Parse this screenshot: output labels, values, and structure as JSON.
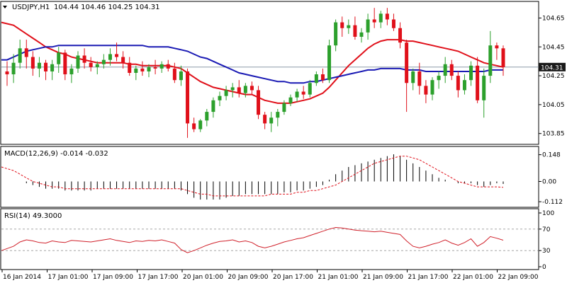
{
  "header": {
    "symbol": "USDJPY,H1",
    "ohlc": "104.44 104.46 104.25 104.31"
  },
  "colors": {
    "bull": "#2ca02c",
    "bear": "#e0101a",
    "ma_fast": "#e0101a",
    "ma_slow": "#1a1ab4",
    "macd_signal": "#e0101a",
    "rsi": "#d0202a",
    "grid": "#c8c8c8",
    "price_tag_bg": "#1a1a1a"
  },
  "chart_data": [
    {
      "type": "candlestick",
      "title": "USDJPY,H1",
      "ylim": [
        103.78,
        104.76
      ],
      "y_ticks": [
        "104.65",
        "104.45",
        "104.25",
        "104.05",
        "103.85"
      ],
      "current_price": "104.31",
      "x_labels": [
        "16 Jan 2014",
        "17 Jan 01:00",
        "17 Jan 09:00",
        "17 Jan 17:00",
        "20 Jan 01:00",
        "20 Jan 09:00",
        "20 Jan 17:00",
        "21 Jan 01:00",
        "21 Jan 09:00",
        "21 Jan 17:00",
        "22 Jan 01:00",
        "22 Jan 09:00"
      ],
      "candles": [
        [
          104.28,
          104.35,
          104.18,
          104.26
        ],
        [
          104.26,
          104.4,
          104.2,
          104.34
        ],
        [
          104.34,
          104.5,
          104.3,
          104.44
        ],
        [
          104.44,
          104.5,
          104.3,
          104.38
        ],
        [
          104.38,
          104.42,
          104.25,
          104.3
        ],
        [
          104.3,
          104.38,
          104.24,
          104.34
        ],
        [
          104.34,
          104.36,
          104.22,
          104.28
        ],
        [
          104.28,
          104.36,
          104.22,
          104.33
        ],
        [
          104.33,
          104.45,
          104.27,
          104.41
        ],
        [
          104.41,
          104.43,
          104.22,
          104.26
        ],
        [
          104.26,
          104.33,
          104.2,
          104.3
        ],
        [
          104.3,
          104.42,
          104.27,
          104.39
        ],
        [
          104.39,
          104.44,
          104.3,
          104.34
        ],
        [
          104.34,
          104.38,
          104.28,
          104.31
        ],
        [
          104.31,
          104.35,
          104.26,
          104.33
        ],
        [
          104.33,
          104.4,
          104.3,
          104.36
        ],
        [
          104.36,
          104.44,
          104.32,
          104.4
        ],
        [
          104.4,
          104.48,
          104.35,
          104.38
        ],
        [
          104.38,
          104.42,
          104.3,
          104.34
        ],
        [
          104.34,
          104.38,
          104.25,
          104.27
        ],
        [
          104.27,
          104.32,
          104.22,
          104.3
        ],
        [
          104.3,
          104.35,
          104.25,
          104.28
        ],
        [
          104.28,
          104.33,
          104.24,
          104.31
        ],
        [
          104.31,
          104.36,
          104.26,
          104.3
        ],
        [
          104.3,
          104.35,
          104.27,
          104.33
        ],
        [
          104.33,
          104.36,
          104.28,
          104.3
        ],
        [
          104.3,
          104.34,
          104.2,
          104.22
        ],
        [
          104.22,
          104.32,
          104.18,
          104.28
        ],
        [
          104.28,
          104.3,
          103.82,
          103.92
        ],
        [
          103.92,
          103.96,
          103.86,
          103.88
        ],
        [
          103.88,
          103.95,
          103.86,
          103.94
        ],
        [
          103.94,
          104.02,
          103.9,
          104.0
        ],
        [
          104.0,
          104.1,
          103.96,
          104.08
        ],
        [
          104.08,
          104.14,
          104.04,
          104.11
        ],
        [
          104.11,
          104.18,
          104.08,
          104.15
        ],
        [
          104.15,
          104.2,
          104.1,
          104.17
        ],
        [
          104.17,
          104.22,
          104.1,
          104.13
        ],
        [
          104.13,
          104.2,
          104.1,
          104.18
        ],
        [
          104.18,
          104.21,
          104.12,
          104.15
        ],
        [
          104.15,
          104.18,
          103.95,
          103.98
        ],
        [
          103.98,
          104.0,
          103.88,
          103.92
        ],
        [
          103.92,
          104.0,
          103.86,
          103.96
        ],
        [
          103.96,
          104.02,
          103.9,
          104.0
        ],
        [
          104.0,
          104.08,
          103.98,
          104.06
        ],
        [
          104.06,
          104.12,
          104.04,
          104.1
        ],
        [
          104.1,
          104.16,
          104.07,
          104.14
        ],
        [
          104.14,
          104.18,
          104.09,
          104.12
        ],
        [
          104.12,
          104.22,
          104.1,
          104.2
        ],
        [
          104.2,
          104.28,
          104.18,
          104.26
        ],
        [
          104.26,
          104.3,
          104.2,
          104.22
        ],
        [
          104.22,
          104.5,
          104.2,
          104.46
        ],
        [
          104.46,
          104.64,
          104.42,
          104.62
        ],
        [
          104.62,
          104.66,
          104.52,
          104.58
        ],
        [
          104.58,
          104.64,
          104.54,
          104.6
        ],
        [
          104.6,
          104.66,
          104.5,
          104.52
        ],
        [
          104.52,
          104.58,
          104.48,
          104.55
        ],
        [
          104.55,
          104.68,
          104.5,
          104.64
        ],
        [
          104.64,
          104.72,
          104.58,
          104.62
        ],
        [
          104.62,
          104.7,
          104.58,
          104.68
        ],
        [
          104.68,
          104.72,
          104.6,
          104.64
        ],
        [
          104.64,
          104.68,
          104.56,
          104.58
        ],
        [
          104.58,
          104.62,
          104.44,
          104.48
        ],
        [
          104.48,
          104.5,
          104.0,
          104.2
        ],
        [
          104.2,
          104.3,
          104.15,
          104.28
        ],
        [
          104.28,
          104.34,
          104.12,
          104.18
        ],
        [
          104.18,
          104.22,
          104.06,
          104.12
        ],
        [
          104.12,
          104.24,
          104.08,
          104.22
        ],
        [
          104.22,
          104.28,
          104.16,
          104.25
        ],
        [
          104.25,
          104.38,
          104.2,
          104.33
        ],
        [
          104.33,
          104.36,
          104.22,
          104.25
        ],
        [
          104.25,
          104.28,
          104.1,
          104.15
        ],
        [
          104.15,
          104.26,
          104.12,
          104.22
        ],
        [
          104.22,
          104.35,
          104.18,
          104.32
        ],
        [
          104.32,
          104.38,
          104.06,
          104.08
        ],
        [
          104.08,
          104.3,
          103.96,
          104.25
        ],
        [
          104.25,
          104.56,
          104.2,
          104.46
        ],
        [
          104.46,
          104.48,
          104.36,
          104.44
        ],
        [
          104.44,
          104.46,
          104.25,
          104.31
        ]
      ],
      "series": [
        {
          "values": [
            104.62,
            104.6,
            104.57,
            104.54,
            104.51,
            104.48,
            104.45,
            104.43,
            104.41,
            104.4,
            104.38,
            104.37,
            104.36,
            104.35,
            104.34,
            104.34,
            104.34,
            104.34,
            104.34,
            104.33,
            104.33,
            104.32,
            104.32,
            104.32,
            104.32,
            104.32,
            104.31,
            104.3,
            104.27,
            104.24,
            104.21,
            104.19,
            104.17,
            104.16,
            104.15,
            104.14,
            104.13,
            104.12,
            104.12,
            104.1,
            104.08,
            104.07,
            104.06,
            104.06,
            104.06,
            104.07,
            104.08,
            104.09,
            104.11,
            104.13,
            104.17,
            104.22,
            104.27,
            104.32,
            104.36,
            104.4,
            104.44,
            104.47,
            104.49,
            104.5,
            104.5,
            104.5,
            104.49,
            104.49,
            104.48,
            104.47,
            104.46,
            104.45,
            104.44,
            104.43,
            104.42,
            104.4,
            104.38,
            104.36,
            104.34,
            104.33,
            104.32,
            104.31
          ]
        },
        {
          "values": [
            104.36,
            104.38,
            104.4,
            104.42,
            104.43,
            104.44,
            104.45,
            104.45,
            104.46,
            104.46,
            104.46,
            104.46,
            104.46,
            104.46,
            104.46,
            104.46,
            104.46,
            104.46,
            104.46,
            104.46,
            104.46,
            104.46,
            104.45,
            104.45,
            104.45,
            104.45,
            104.44,
            104.43,
            104.42,
            104.4,
            104.38,
            104.37,
            104.35,
            104.33,
            104.31,
            104.29,
            104.27,
            104.26,
            104.25,
            104.24,
            104.23,
            104.22,
            104.21,
            104.21,
            104.2,
            104.2,
            104.2,
            104.21,
            104.21,
            104.22,
            104.23,
            104.24,
            104.25,
            104.26,
            104.27,
            104.28,
            104.29,
            104.29,
            104.3,
            104.3,
            104.3,
            104.3,
            104.29,
            104.29,
            104.29,
            104.28,
            104.28,
            104.28,
            104.28,
            104.28,
            104.28,
            104.28,
            104.28,
            104.28,
            104.28,
            104.29,
            104.29,
            104.29
          ]
        }
      ]
    },
    {
      "type": "histogram+line",
      "title": "MACD(12,26,9) -0.014 -0.032",
      "ylim": [
        -0.135,
        0.17
      ],
      "y_ticks": [
        "0.148",
        "0.00",
        "-0.112"
      ],
      "series": [
        {
          "values": [
            0,
            0,
            0,
            -0.01,
            -0.02,
            -0.03,
            -0.04,
            -0.04,
            -0.04,
            -0.05,
            -0.05,
            -0.05,
            -0.05,
            -0.05,
            -0.04,
            -0.04,
            -0.04,
            -0.04,
            -0.04,
            -0.04,
            -0.04,
            -0.04,
            -0.04,
            -0.04,
            -0.04,
            -0.04,
            -0.04,
            -0.05,
            -0.07,
            -0.09,
            -0.1,
            -0.1,
            -0.1,
            -0.1,
            -0.09,
            -0.08,
            -0.08,
            -0.07,
            -0.07,
            -0.07,
            -0.07,
            -0.07,
            -0.07,
            -0.06,
            -0.06,
            -0.05,
            -0.05,
            -0.04,
            -0.03,
            -0.02,
            0.01,
            0.04,
            0.06,
            0.08,
            0.09,
            0.1,
            0.11,
            0.12,
            0.13,
            0.14,
            0.15,
            0.14,
            0.12,
            0.1,
            0.08,
            0.06,
            0.04,
            0.02,
            0.01,
            0.0,
            -0.01,
            -0.01,
            -0.01,
            -0.02,
            -0.03,
            -0.02,
            -0.01,
            -0.014
          ]
        },
        {
          "values": [
            0.08,
            0.06,
            0.04,
            0.02,
            0.0,
            -0.01,
            -0.02,
            -0.03,
            -0.03,
            -0.04,
            -0.04,
            -0.04,
            -0.04,
            -0.04,
            -0.04,
            -0.04,
            -0.04,
            -0.04,
            -0.04,
            -0.04,
            -0.04,
            -0.04,
            -0.04,
            -0.04,
            -0.04,
            -0.04,
            -0.04,
            -0.04,
            -0.05,
            -0.06,
            -0.07,
            -0.07,
            -0.08,
            -0.08,
            -0.08,
            -0.08,
            -0.08,
            -0.08,
            -0.08,
            -0.08,
            -0.08,
            -0.07,
            -0.07,
            -0.07,
            -0.07,
            -0.06,
            -0.06,
            -0.05,
            -0.05,
            -0.04,
            -0.03,
            -0.02,
            0.0,
            0.02,
            0.04,
            0.06,
            0.08,
            0.1,
            0.11,
            0.12,
            0.13,
            0.14,
            0.14,
            0.13,
            0.12,
            0.1,
            0.08,
            0.06,
            0.04,
            0.02,
            0.0,
            -0.01,
            -0.02,
            -0.03,
            -0.03,
            -0.03,
            -0.03,
            -0.032
          ]
        }
      ]
    },
    {
      "type": "line",
      "title": "RSI(14) 49.3000",
      "ylim": [
        0,
        100
      ],
      "y_ticks": [
        "100",
        "70",
        "30",
        "0"
      ],
      "levels": [
        70,
        30
      ],
      "series": [
        {
          "values": [
            30,
            38,
            46,
            50,
            48,
            45,
            44,
            48,
            46,
            45,
            49,
            48,
            47,
            46,
            48,
            50,
            52,
            49,
            47,
            45,
            48,
            47,
            49,
            48,
            50,
            47,
            44,
            32,
            26,
            30,
            35,
            40,
            44,
            47,
            48,
            50,
            46,
            48,
            45,
            38,
            35,
            38,
            42,
            46,
            49,
            52,
            54,
            58,
            62,
            66,
            70,
            73,
            72,
            70,
            68,
            67,
            66,
            65,
            66,
            64,
            62,
            60,
            48,
            38,
            35,
            38,
            42,
            45,
            50,
            44,
            40,
            45,
            52,
            38,
            45,
            56,
            53,
            49.3
          ]
        }
      ]
    }
  ]
}
